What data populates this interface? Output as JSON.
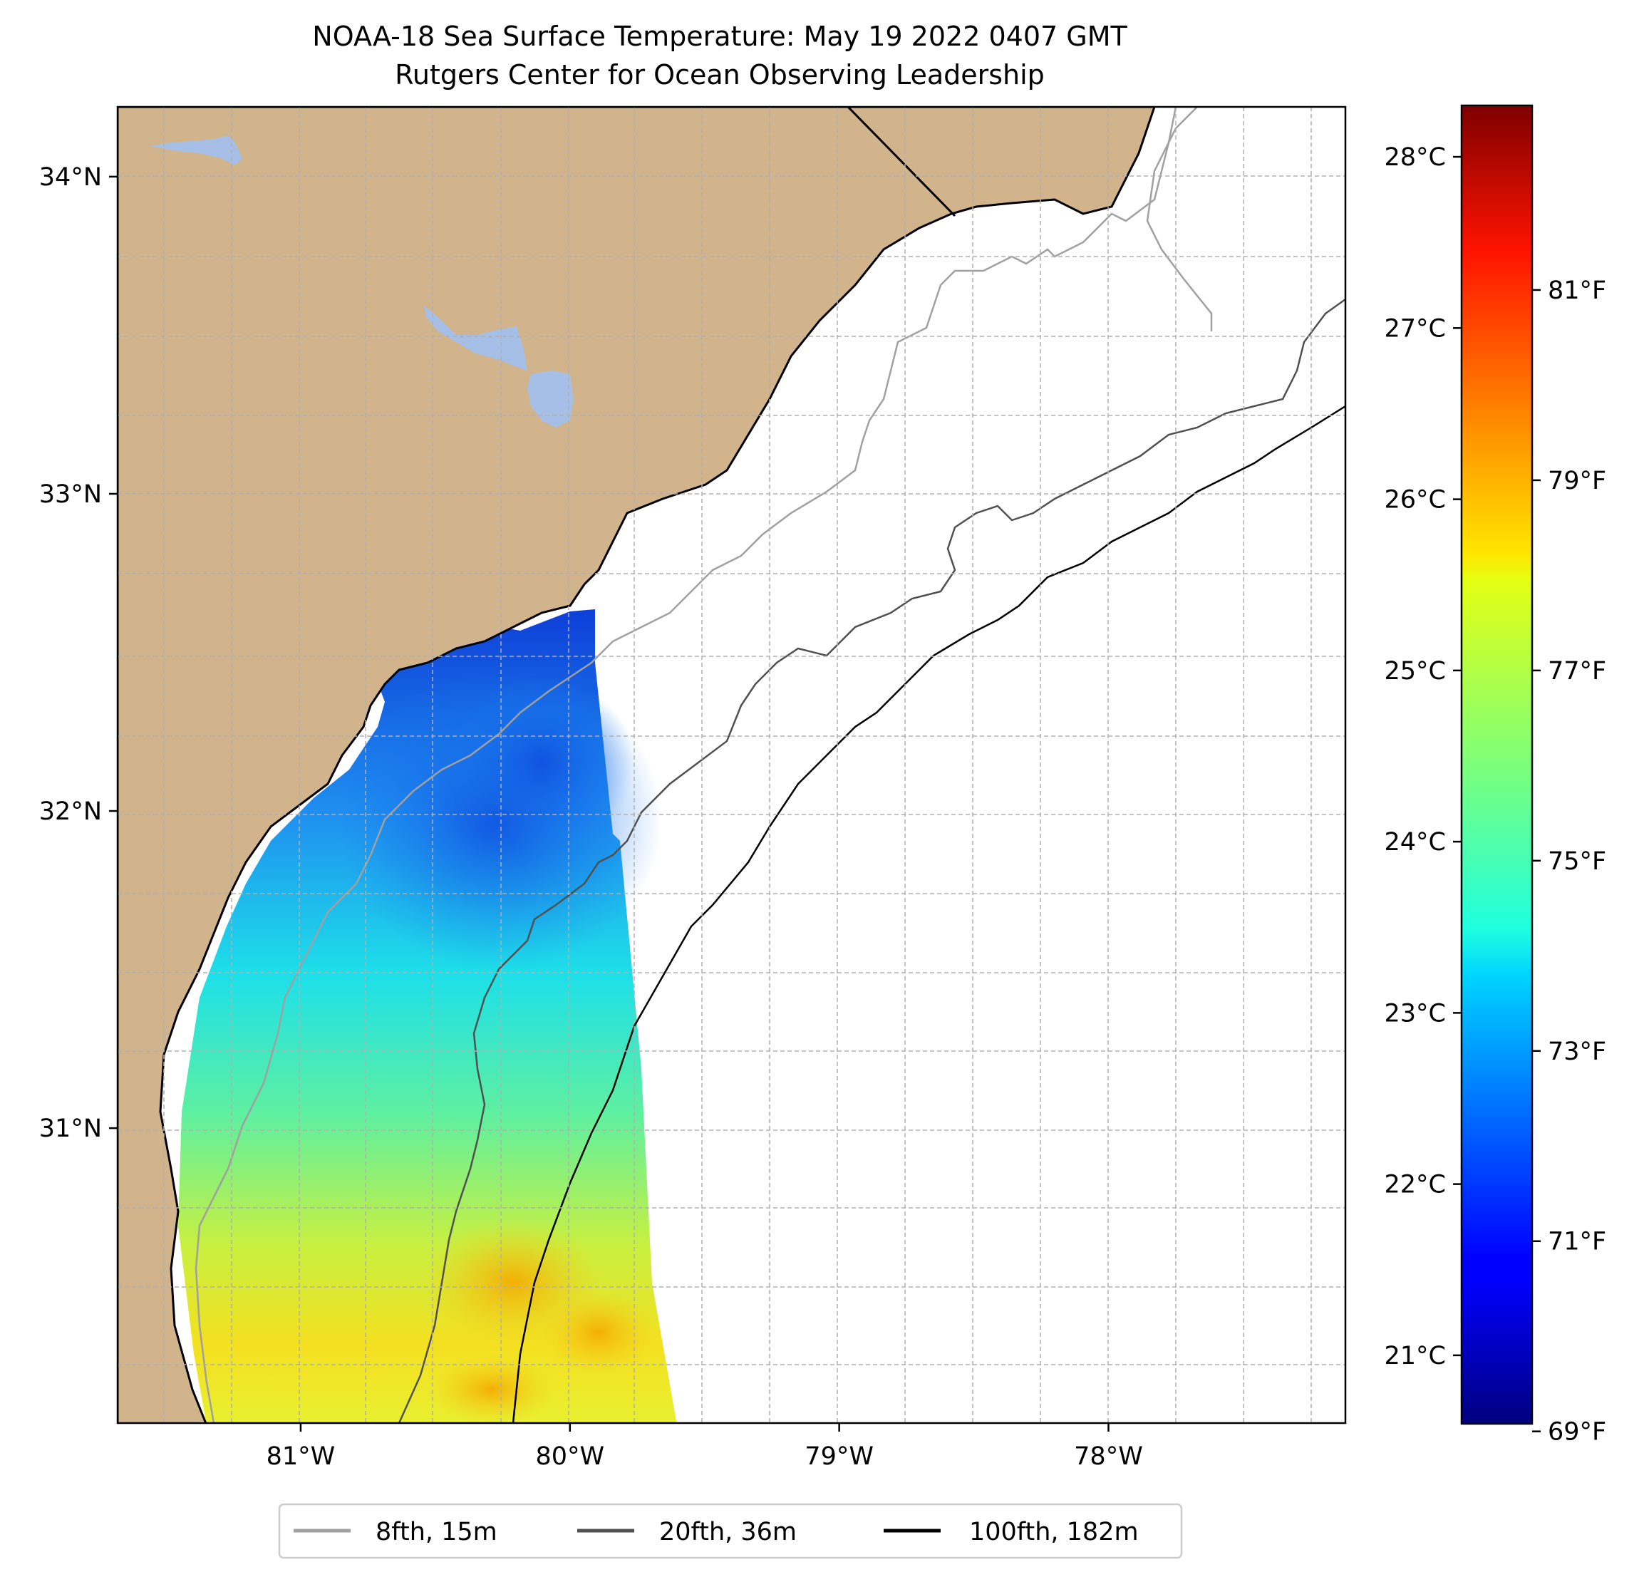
{
  "title": {
    "line1": "NOAA-18 Sea Surface Temperature: May 19 2022 0407 GMT",
    "line2": "Rutgers Center for Ocean Observing Leadership"
  },
  "map": {
    "lon_range": [
      -81.68,
      -77.12
    ],
    "lat_range": [
      30.07,
      34.22
    ],
    "lon_ticks": [
      {
        "value": -81,
        "label": "81°W"
      },
      {
        "value": -80,
        "label": "80°W"
      },
      {
        "value": -79,
        "label": "79°W"
      },
      {
        "value": -78,
        "label": "78°W"
      }
    ],
    "lat_ticks": [
      {
        "value": 34,
        "label": "34°N"
      },
      {
        "value": 33,
        "label": "33°N"
      },
      {
        "value": 32,
        "label": "32°N"
      },
      {
        "value": 31,
        "label": "31°N"
      }
    ],
    "land_color": "#d2b48c",
    "lake_color": "#a5bfe6",
    "gridlines": "dashed"
  },
  "colorbar": {
    "colormap": "jet",
    "range_c": [
      20.6,
      28.3
    ],
    "celsius_ticks": [
      {
        "value": 21,
        "label": "21°C"
      },
      {
        "value": 22,
        "label": "22°C"
      },
      {
        "value": 23,
        "label": "23°C"
      },
      {
        "value": 24,
        "label": "24°C"
      },
      {
        "value": 25,
        "label": "25°C"
      },
      {
        "value": 26,
        "label": "26°C"
      },
      {
        "value": 27,
        "label": "27°C"
      },
      {
        "value": 28,
        "label": "28°C"
      }
    ],
    "fahrenheit_ticks": [
      {
        "value": 69,
        "label": "69°F"
      },
      {
        "value": 71,
        "label": "71°F"
      },
      {
        "value": 73,
        "label": "73°F"
      },
      {
        "value": 75,
        "label": "75°F"
      },
      {
        "value": 77,
        "label": "77°F"
      },
      {
        "value": 79,
        "label": "79°F"
      },
      {
        "value": 81,
        "label": "81°F"
      }
    ]
  },
  "legend": {
    "items": [
      {
        "label": "8fth, 15m",
        "color": "#a0a0a0"
      },
      {
        "label": "20fth, 36m",
        "color": "#505050"
      },
      {
        "label": "100fth, 182m",
        "color": "#000000"
      }
    ]
  }
}
